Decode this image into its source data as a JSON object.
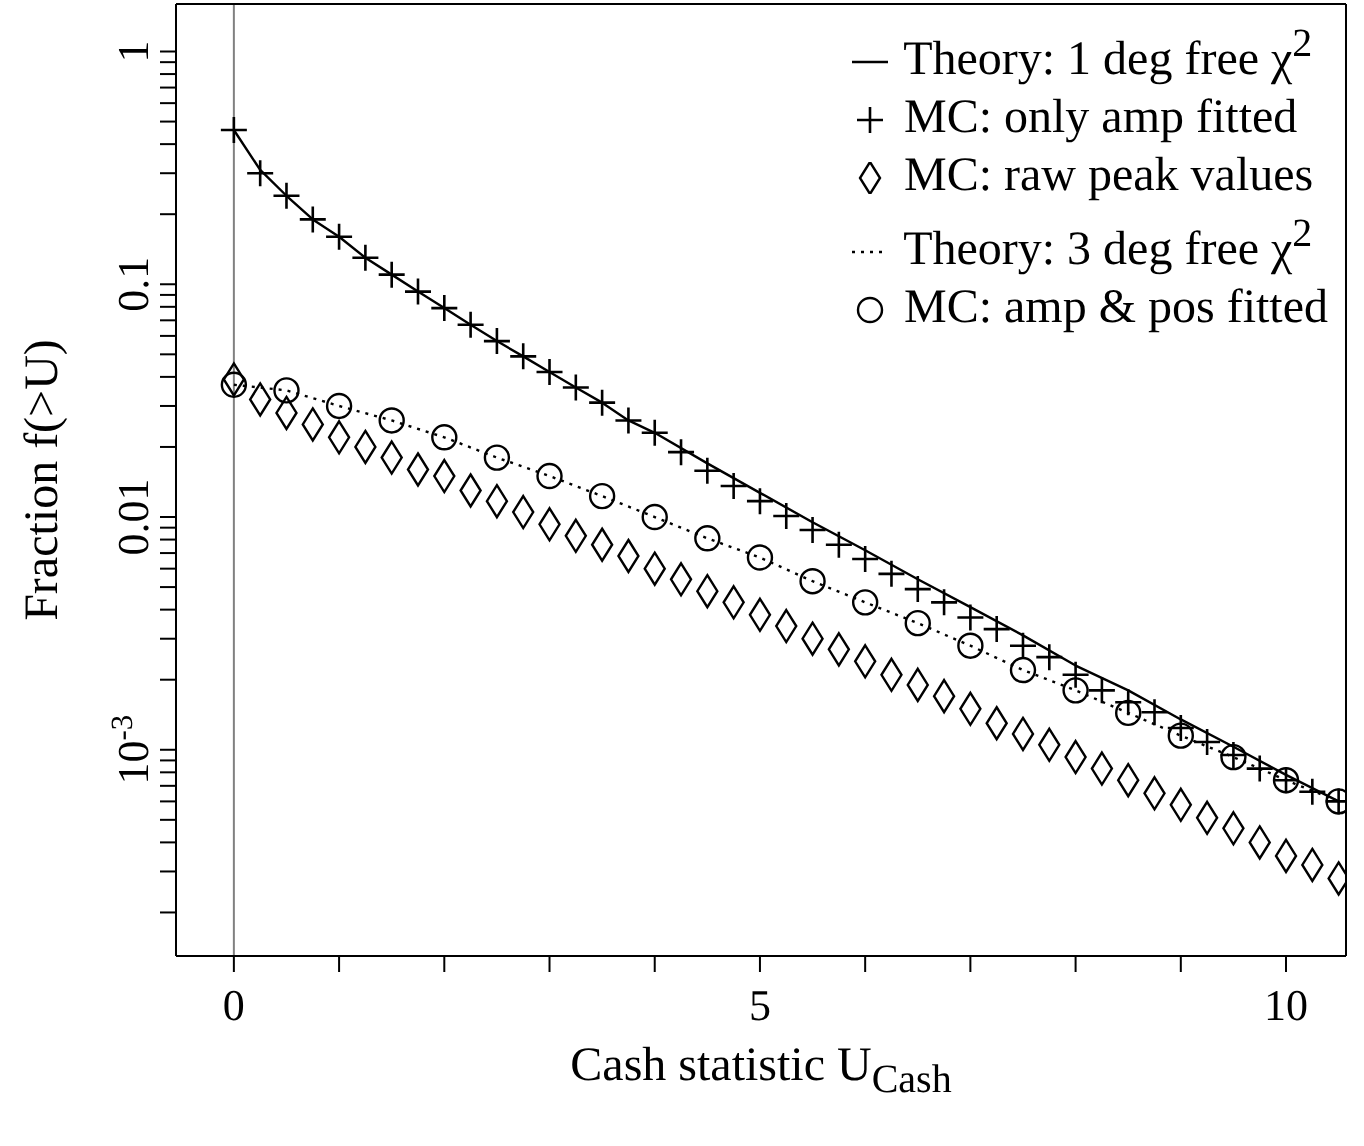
{
  "chart_data": {
    "type": "line",
    "xlabel": "Cash statistic U$_{Cash}$",
    "ylabel": "Fraction f(>U)",
    "log": "y",
    "grid": false,
    "legend": "top right",
    "xlim": [
      -0.55,
      10.57
    ],
    "xticks": [
      0,
      {
        "value": 1,
        "label": null
      },
      {
        "value": 2,
        "label": null
      },
      {
        "value": 3,
        "label": null
      },
      {
        "value": 4,
        "label": null
      },
      5,
      {
        "value": 6,
        "label": null
      },
      {
        "value": 7,
        "label": null
      },
      {
        "value": 8,
        "label": null
      },
      {
        "value": 9,
        "label": null
      },
      10
    ],
    "ylim": [
      0.00013,
      1.6
    ],
    "yticks": [
      {
        "value": 0.0002,
        "label": null
      },
      {
        "value": 0.0003,
        "label": null
      },
      {
        "value": 0.0004,
        "label": null
      },
      {
        "value": 0.0005,
        "label": null
      },
      {
        "value": 0.0006,
        "label": null
      },
      {
        "value": 0.0007,
        "label": null
      },
      {
        "value": 0.0008,
        "label": null
      },
      {
        "value": 0.0009,
        "label": null
      },
      {
        "value": 0.001,
        "label": "10$^{-3}$"
      },
      {
        "value": 0.002,
        "label": null
      },
      {
        "value": 0.003,
        "label": null
      },
      {
        "value": 0.004,
        "label": null
      },
      {
        "value": 0.005,
        "label": null
      },
      {
        "value": 0.006,
        "label": null
      },
      {
        "value": 0.007,
        "label": null
      },
      {
        "value": 0.008,
        "label": null
      },
      {
        "value": 0.009,
        "label": null
      },
      0.01,
      {
        "value": 0.02,
        "label": null
      },
      {
        "value": 0.03,
        "label": null
      },
      {
        "value": 0.04,
        "label": null
      },
      {
        "value": 0.05,
        "label": null
      },
      {
        "value": 0.06,
        "label": null
      },
      {
        "value": 0.07,
        "label": null
      },
      {
        "value": 0.08,
        "label": null
      },
      {
        "value": 0.09,
        "label": null
      },
      0.1,
      {
        "value": 0.2,
        "label": null
      },
      {
        "value": 0.3,
        "label": null
      },
      {
        "value": 0.4,
        "label": null
      },
      {
        "value": 0.5,
        "label": null
      },
      {
        "value": 0.6,
        "label": null
      },
      {
        "value": 0.7,
        "label": null
      },
      {
        "value": 0.8,
        "label": null
      },
      {
        "value": 0.9,
        "label": null
      },
      1
    ],
    "ref_lines": [
      {
        "axis": "x",
        "value": 0,
        "color": "#808080",
        "line_style": "solid"
      }
    ],
    "series": [
      {
        "name": "Theory: 1 deg free χ$^{2}$",
        "type": "line",
        "color": "#000000",
        "line_style": "solid",
        "marker": "none",
        "x": [
          0,
          0.25,
          0.5,
          0.75,
          1,
          1.25,
          1.5,
          1.75,
          2,
          2.25,
          2.5,
          2.75,
          3,
          3.25,
          3.5,
          3.75,
          4,
          4.5,
          5,
          5.5,
          6,
          6.5,
          7,
          7.5,
          8,
          8.5,
          9,
          9.5,
          10,
          10.5
        ],
        "values": [
          0.46,
          0.31,
          0.24,
          0.19,
          0.16,
          0.13,
          0.11,
          0.093,
          0.079,
          0.067,
          0.057,
          0.049,
          0.042,
          0.036,
          0.031,
          0.026,
          0.023,
          0.017,
          0.0127,
          0.0095,
          0.0072,
          0.0054,
          0.0041,
          0.0031,
          0.0023,
          0.0018,
          0.00135,
          0.00103,
          0.00078,
          0.0006
        ]
      },
      {
        "name": "MC: only amp fitted",
        "type": "scatter",
        "color": "#000000",
        "marker": "cross",
        "x": [
          0,
          0.25,
          0.5,
          0.75,
          1,
          1.25,
          1.5,
          1.75,
          2,
          2.25,
          2.5,
          2.75,
          3,
          3.25,
          3.5,
          3.75,
          4,
          4.25,
          4.5,
          4.75,
          5,
          5.25,
          5.5,
          5.75,
          6,
          6.25,
          6.5,
          6.75,
          7,
          7.25,
          7.5,
          7.75,
          8,
          8.25,
          8.5,
          8.75,
          9,
          9.25,
          9.5,
          9.75,
          10,
          10.25,
          10.5
        ],
        "values": [
          0.46,
          0.3,
          0.24,
          0.19,
          0.16,
          0.13,
          0.11,
          0.093,
          0.079,
          0.067,
          0.057,
          0.049,
          0.042,
          0.036,
          0.031,
          0.026,
          0.023,
          0.019,
          0.0158,
          0.0136,
          0.0117,
          0.0101,
          0.0088,
          0.0076,
          0.0066,
          0.0057,
          0.0049,
          0.0043,
          0.0037,
          0.0033,
          0.0028,
          0.0025,
          0.0021,
          0.0018,
          0.0016,
          0.00145,
          0.00124,
          0.00108,
          0.00095,
          0.00083,
          0.00074,
          0.00066,
          0.0006
        ]
      },
      {
        "name": "MC: raw peak values",
        "type": "scatter",
        "color": "#000000",
        "marker": "diamond",
        "x": [
          0,
          0.25,
          0.5,
          0.75,
          1,
          1.25,
          1.5,
          1.75,
          2,
          2.25,
          2.5,
          2.75,
          3,
          3.25,
          3.5,
          3.75,
          4,
          4.25,
          4.5,
          4.75,
          5,
          5.25,
          5.5,
          5.75,
          6,
          6.25,
          6.5,
          6.75,
          7,
          7.25,
          7.5,
          7.75,
          8,
          8.25,
          8.5,
          8.75,
          9,
          9.25,
          9.5,
          9.75,
          10,
          10.25,
          10.5
        ],
        "values": [
          0.039,
          0.032,
          0.028,
          0.025,
          0.022,
          0.02,
          0.018,
          0.016,
          0.015,
          0.013,
          0.0117,
          0.0105,
          0.0093,
          0.0083,
          0.0076,
          0.0068,
          0.006,
          0.0054,
          0.0048,
          0.0043,
          0.0038,
          0.0034,
          0.003,
          0.0027,
          0.0024,
          0.0021,
          0.0019,
          0.0017,
          0.0015,
          0.0013,
          0.00117,
          0.00105,
          0.00093,
          0.00083,
          0.00074,
          0.00065,
          0.00058,
          0.00051,
          0.00046,
          0.0004,
          0.00035,
          0.00032,
          0.00028
        ]
      },
      {
        "name": "Theory: 3 deg free χ$^{2}$",
        "type": "line",
        "color": "#000000",
        "line_style": "dotted",
        "marker": "none",
        "x": [
          0,
          0.5,
          1,
          1.5,
          2,
          2.5,
          3,
          3.5,
          4,
          4.5,
          5,
          5.5,
          6,
          6.5,
          7,
          7.5,
          8,
          8.5,
          9,
          9.5,
          10,
          10.5
        ],
        "values": [
          0.037,
          0.035,
          0.03,
          0.026,
          0.022,
          0.018,
          0.015,
          0.0123,
          0.01,
          0.0081,
          0.0067,
          0.0053,
          0.0043,
          0.0035,
          0.0028,
          0.0022,
          0.0018,
          0.00144,
          0.00115,
          0.00093,
          0.00074,
          0.0006
        ]
      },
      {
        "name": "MC: amp & pos fitted",
        "type": "scatter",
        "color": "#000000",
        "marker": "circle",
        "x": [
          0,
          0.5,
          1,
          1.5,
          2,
          2.5,
          3,
          3.5,
          4,
          4.5,
          5,
          5.5,
          6,
          6.5,
          7,
          7.5,
          8,
          8.5,
          9,
          9.5,
          10,
          10.5
        ],
        "values": [
          0.037,
          0.035,
          0.03,
          0.026,
          0.022,
          0.018,
          0.015,
          0.0123,
          0.01,
          0.0081,
          0.0067,
          0.0053,
          0.0043,
          0.0035,
          0.0028,
          0.0022,
          0.0018,
          0.00144,
          0.00115,
          0.00093,
          0.00074,
          0.0006
        ]
      }
    ]
  }
}
